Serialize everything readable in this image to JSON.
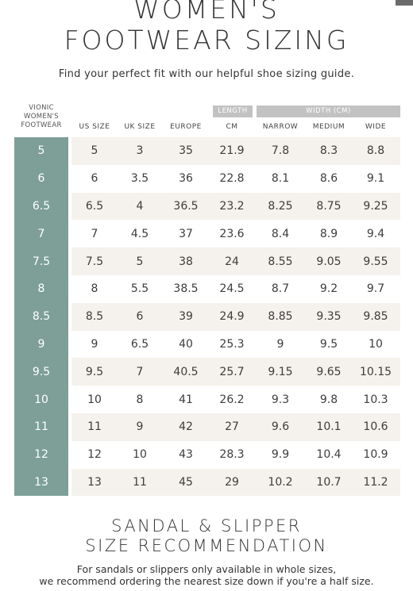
{
  "title_line1": "WOMEN'S",
  "title_line2": "FOOTWEAR SIZING",
  "subtitle": "Find your perfect fit with our helpful shoe sizing guide.",
  "table": {
    "vionic_header": [
      "VIONIC",
      "WOMEN'S",
      "FOOTWEAR"
    ],
    "length_group": "LENGTH",
    "width_group": "WIDTH (CM)",
    "columns": [
      "US SIZE",
      "UK SIZE",
      "EUROPE",
      "CM",
      "NARROW",
      "MEDIUM",
      "WIDE"
    ],
    "rows": [
      {
        "vionic": "5",
        "us": "5",
        "uk": "3",
        "eu": "35",
        "cm": "21.9",
        "narrow": "7.8",
        "medium": "8.3",
        "wide": "8.8"
      },
      {
        "vionic": "6",
        "us": "6",
        "uk": "3.5",
        "eu": "36",
        "cm": "22.8",
        "narrow": "8.1",
        "medium": "8.6",
        "wide": "9.1"
      },
      {
        "vionic": "6.5",
        "us": "6.5",
        "uk": "4",
        "eu": "36.5",
        "cm": "23.2",
        "narrow": "8.25",
        "medium": "8.75",
        "wide": "9.25"
      },
      {
        "vionic": "7",
        "us": "7",
        "uk": "4.5",
        "eu": "37",
        "cm": "23.6",
        "narrow": "8.4",
        "medium": "8.9",
        "wide": "9.4"
      },
      {
        "vionic": "7.5",
        "us": "7.5",
        "uk": "5",
        "eu": "38",
        "cm": "24",
        "narrow": "8.55",
        "medium": "9.05",
        "wide": "9.55"
      },
      {
        "vionic": "8",
        "us": "8",
        "uk": "5.5",
        "eu": "38.5",
        "cm": "24.5",
        "narrow": "8.7",
        "medium": "9.2",
        "wide": "9.7"
      },
      {
        "vionic": "8.5",
        "us": "8.5",
        "uk": "6",
        "eu": "39",
        "cm": "24.9",
        "narrow": "8.85",
        "medium": "9.35",
        "wide": "9.85"
      },
      {
        "vionic": "9",
        "us": "9",
        "uk": "6.5",
        "eu": "40",
        "cm": "25.3",
        "narrow": "9",
        "medium": "9.5",
        "wide": "10"
      },
      {
        "vionic": "9.5",
        "us": "9.5",
        "uk": "7",
        "eu": "40.5",
        "cm": "25.7",
        "narrow": "9.15",
        "medium": "9.65",
        "wide": "10.15"
      },
      {
        "vionic": "10",
        "us": "10",
        "uk": "8",
        "eu": "41",
        "cm": "26.2",
        "narrow": "9.3",
        "medium": "9.8",
        "wide": "10.3"
      },
      {
        "vionic": "11",
        "us": "11",
        "uk": "9",
        "eu": "42",
        "cm": "27",
        "narrow": "9.6",
        "medium": "10.1",
        "wide": "10.6"
      },
      {
        "vionic": "12",
        "us": "12",
        "uk": "10",
        "eu": "43",
        "cm": "28.3",
        "narrow": "9.9",
        "medium": "10.4",
        "wide": "10.9"
      },
      {
        "vionic": "13",
        "us": "13",
        "uk": "11",
        "eu": "45",
        "cm": "29",
        "narrow": "10.2",
        "medium": "10.7",
        "wide": "11.2"
      }
    ]
  },
  "sandal_title_line1": "SANDAL & SLIPPER",
  "sandal_title_line2": "SIZE RECOMMENDATION",
  "note_line1": "For sandals or slippers only available in whole sizes,",
  "note_line2": "we recommend ordering the nearest size down if you're a half size.",
  "colors": {
    "accent_green": "#7d9f98",
    "stripe": "#f5f1ec",
    "header_gray": "#c2c2c2"
  }
}
